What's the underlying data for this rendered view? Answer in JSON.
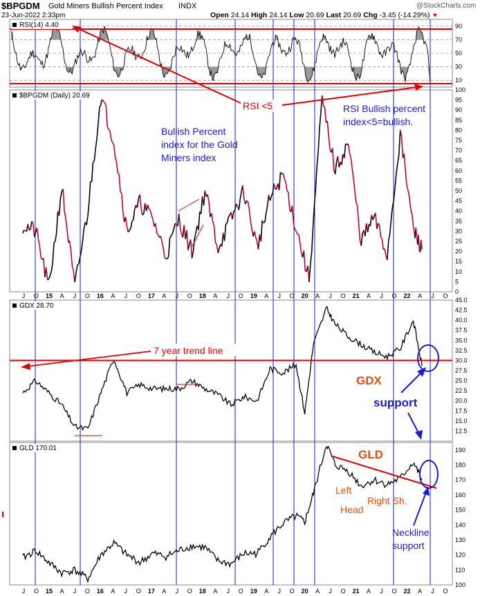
{
  "header": {
    "symbol": "$BPGDM",
    "name": "Gold Miners Bullish Percent Index",
    "exchange": "INDX",
    "date": "23-Jun-2022 2:33pm",
    "open_label": "Open",
    "open": "24.14",
    "high_label": "High",
    "high": "24.14",
    "low_label": "Low",
    "low": "20.69",
    "last_label": "Last",
    "last": "20.69",
    "chg_label": "Chg",
    "chg": "-3.45 (-14.29%)",
    "watermark": "@StockCharts.com"
  },
  "chart_data": [
    {
      "type": "line",
      "panel": "rsi",
      "label": "RSI(14) 4.40",
      "ylim": [
        0,
        100
      ],
      "yticks": [
        10,
        30,
        50,
        70,
        90
      ],
      "reference_lines": [
        10,
        30,
        50,
        70,
        90
      ],
      "annotations": [
        "RSI <5"
      ],
      "color": "#000000"
    },
    {
      "type": "line",
      "panel": "bpgdm",
      "label": "$BPGDM (Daily) 20.69",
      "ylim": [
        0,
        100
      ],
      "yticks": [
        "0",
        "5",
        "10",
        "15",
        "20",
        "25",
        "30",
        "35",
        "40",
        "45",
        "50",
        "55",
        "60",
        "65",
        "70",
        "75",
        "80",
        "85",
        "90",
        "95",
        "100"
      ],
      "x": [
        "2014-10",
        "2015-01",
        "2015-04",
        "2015-07",
        "2015-10",
        "2016-01",
        "2016-04",
        "2016-07",
        "2016-10",
        "2017-01",
        "2017-04",
        "2017-07",
        "2017-10",
        "2018-01",
        "2018-04",
        "2018-07",
        "2018-10",
        "2019-01",
        "2019-04",
        "2019-07",
        "2019-10",
        "2020-01",
        "2020-04",
        "2020-07",
        "2020-10",
        "2021-01",
        "2021-04",
        "2021-07",
        "2021-10",
        "2022-01",
        "2022-04",
        "2022-06"
      ],
      "values": [
        33,
        30,
        2,
        52,
        2,
        40,
        97,
        75,
        30,
        44,
        36,
        18,
        36,
        20,
        50,
        22,
        36,
        50,
        22,
        46,
        58,
        32,
        6,
        95,
        60,
        74,
        25,
        37,
        18,
        78,
        31,
        21
      ],
      "annotations": [
        "Bullish Percent index for the Gold Miners index",
        "RSI Bullish percent index<5=bullish."
      ],
      "colors": {
        "up": "#000000",
        "down": "#c0003c"
      }
    },
    {
      "type": "line",
      "panel": "gdx",
      "label": "GDX 28.70",
      "ylim": [
        10,
        45
      ],
      "yticks": [
        "12.5",
        "15.0",
        "17.5",
        "20.0",
        "22.5",
        "25.0",
        "27.5",
        "30.0",
        "32.5",
        "35.0",
        "37.5",
        "40.0",
        "42.5",
        "45.0"
      ],
      "x": [
        "2014-10",
        "2015-01",
        "2015-04",
        "2015-07",
        "2015-10",
        "2016-01",
        "2016-04",
        "2016-07",
        "2016-10",
        "2017-01",
        "2017-04",
        "2017-07",
        "2017-10",
        "2018-01",
        "2018-04",
        "2018-07",
        "2018-10",
        "2019-01",
        "2019-04",
        "2019-07",
        "2019-10",
        "2020-01",
        "2020-03",
        "2020-05",
        "2020-08",
        "2020-10",
        "2021-01",
        "2021-04",
        "2021-07",
        "2021-10",
        "2022-01",
        "2022-04",
        "2022-06"
      ],
      "values": [
        22,
        25,
        22,
        19,
        13.5,
        13,
        22,
        30.5,
        22,
        24,
        23,
        23,
        23,
        25,
        23,
        21.5,
        19,
        21,
        20,
        28,
        27,
        29,
        17,
        34,
        43,
        39,
        36,
        34,
        32,
        31,
        33,
        40,
        28.7
      ],
      "trend_line_value": 30,
      "annotations": [
        "7 year trend line",
        "GDX",
        "support"
      ]
    },
    {
      "type": "line",
      "panel": "gld",
      "label": "GLD 170.01",
      "ylim": [
        100,
        195
      ],
      "yticks": [
        "100",
        "110",
        "120",
        "130",
        "140",
        "150",
        "160",
        "170",
        "180",
        "190"
      ],
      "x": [
        "2014-10",
        "2015-01",
        "2015-04",
        "2015-07",
        "2015-10",
        "2016-01",
        "2016-04",
        "2016-07",
        "2016-10",
        "2017-01",
        "2017-04",
        "2017-07",
        "2017-10",
        "2018-01",
        "2018-04",
        "2018-07",
        "2018-10",
        "2019-01",
        "2019-04",
        "2019-07",
        "2019-10",
        "2020-01",
        "2020-03",
        "2020-05",
        "2020-08",
        "2020-10",
        "2021-01",
        "2021-04",
        "2021-07",
        "2021-10",
        "2022-01",
        "2022-04",
        "2022-06"
      ],
      "values": [
        118,
        123,
        115,
        108,
        110,
        104,
        120,
        128,
        120,
        115,
        121,
        119,
        123,
        126,
        125,
        116,
        114,
        121,
        121,
        132,
        141,
        146,
        142,
        161,
        194,
        180,
        176,
        166,
        170,
        167,
        171,
        182,
        170
      ],
      "annotations": [
        "GLD",
        "Left",
        "Head",
        "Right Sh.",
        "Neckline support"
      ]
    }
  ],
  "time_axis": {
    "labels": [
      "J",
      "O",
      "15",
      "A",
      "J",
      "O",
      "16",
      "A",
      "J",
      "O",
      "17",
      "A",
      "J",
      "O",
      "18",
      "A",
      "J",
      "O",
      "19",
      "A",
      "J",
      "O",
      "20",
      "A",
      "J",
      "O",
      "21",
      "A",
      "J",
      "O",
      "22",
      "A",
      "J",
      "O"
    ]
  }
}
